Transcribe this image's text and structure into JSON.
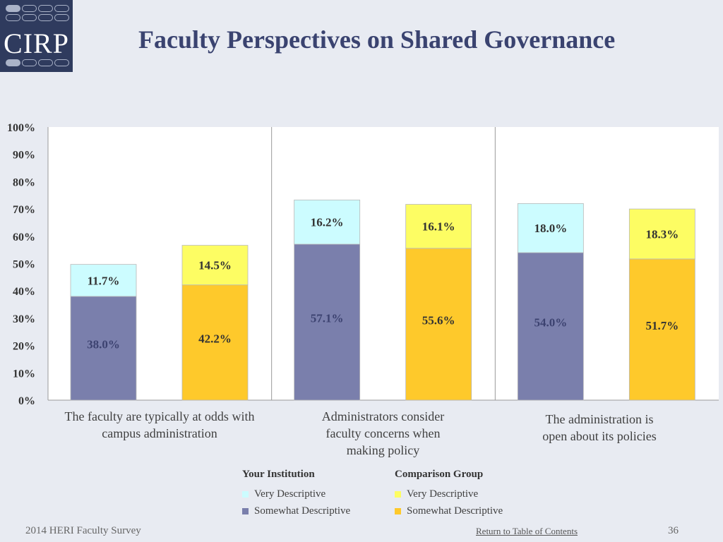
{
  "logo": {
    "text": "CIRP"
  },
  "title": "Faculty Perspectives on Shared Governance",
  "colors": {
    "inst_very": "#ccfcff",
    "inst_somewhat": "#7a7fac",
    "comp_very": "#fdfd63",
    "comp_somewhat": "#fec92b"
  },
  "chart_data": {
    "type": "bar",
    "stacked": true,
    "title": "Faculty Perspectives on Shared Governance",
    "ylim": [
      0,
      100
    ],
    "yticks": [
      "0%",
      "10%",
      "20%",
      "30%",
      "40%",
      "50%",
      "60%",
      "70%",
      "80%",
      "90%",
      "100%"
    ],
    "categories": [
      "The faculty are typically at odds with campus administration",
      "Administrators consider faculty concerns when making policy",
      "The administration is open about its policies"
    ],
    "category_lines": [
      [
        "The faculty are typically at odds with",
        "campus administration"
      ],
      [
        "Administrators consider",
        "faculty concerns when",
        "making policy"
      ],
      [
        "The administration is",
        "open about its policies"
      ]
    ],
    "groups": [
      {
        "name": "Your Institution",
        "somewhat": [
          38.0,
          57.1,
          54.0
        ],
        "very": [
          11.7,
          16.2,
          18.0
        ]
      },
      {
        "name": "Comparison Group",
        "somewhat": [
          42.2,
          55.6,
          51.7
        ],
        "very": [
          14.5,
          16.1,
          18.3
        ]
      }
    ],
    "labels": {
      "inst_somewhat": [
        "38.0%",
        "57.1%",
        "54.0%"
      ],
      "inst_very": [
        "11.7%",
        "16.2%",
        "18.0%"
      ],
      "comp_somewhat": [
        "42.2%",
        "55.6%",
        "51.7%"
      ],
      "comp_very": [
        "14.5%",
        "16.1%",
        "18.3%"
      ]
    }
  },
  "legend": {
    "institution": {
      "heading": "Your Institution",
      "very": "Very Descriptive",
      "somewhat": "Somewhat Descriptive"
    },
    "comparison": {
      "heading": "Comparison Group",
      "very": "Very Descriptive",
      "somewhat": "Somewhat Descriptive"
    }
  },
  "footer": {
    "left": "2014 HERI Faculty Survey",
    "link": "Return to Table of Contents",
    "page": "36"
  }
}
